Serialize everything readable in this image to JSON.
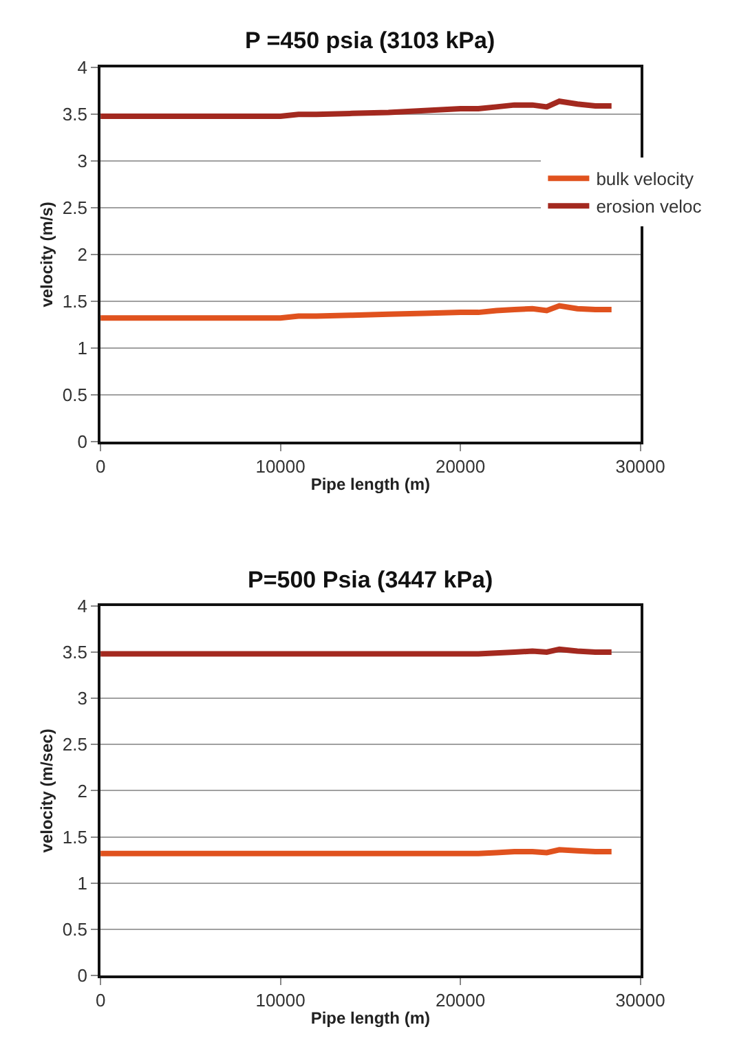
{
  "chart_data": [
    {
      "type": "line",
      "title": "P =450 psia (3103 kPa)",
      "xlabel": "Pipe length (m)",
      "ylabel": "velocity (m/s)",
      "x": [
        0,
        2000,
        4000,
        6000,
        8000,
        10000,
        11000,
        12000,
        14000,
        16000,
        18000,
        20000,
        21000,
        22000,
        23000,
        24000,
        24800,
        25500,
        26500,
        27500,
        28400
      ],
      "series": [
        {
          "name": "bulk velocity",
          "color": "#e0521e",
          "values": [
            1.32,
            1.32,
            1.32,
            1.32,
            1.32,
            1.32,
            1.34,
            1.34,
            1.35,
            1.36,
            1.37,
            1.38,
            1.38,
            1.4,
            1.41,
            1.42,
            1.4,
            1.45,
            1.42,
            1.41,
            1.41
          ]
        },
        {
          "name": "erosion veloc",
          "color": "#a3291f",
          "values": [
            3.48,
            3.48,
            3.48,
            3.48,
            3.48,
            3.48,
            3.5,
            3.5,
            3.51,
            3.52,
            3.54,
            3.56,
            3.56,
            3.58,
            3.6,
            3.6,
            3.58,
            3.64,
            3.61,
            3.59,
            3.59
          ]
        }
      ],
      "xlim": [
        0,
        30000
      ],
      "xticks": [
        0,
        10000,
        20000,
        30000
      ],
      "ylim": [
        0,
        4
      ],
      "yticks": [
        0,
        0.5,
        1,
        1.5,
        2,
        2.5,
        3,
        3.5,
        4
      ],
      "grid": "y",
      "legend": "right",
      "marker": "none",
      "line_style": "solid"
    },
    {
      "type": "line",
      "title": "P=500 Psia (3447 kPa)",
      "xlabel": "Pipe length (m)",
      "ylabel": "velocity (m/sec)",
      "x": [
        0,
        2000,
        4000,
        6000,
        8000,
        10000,
        11000,
        12000,
        14000,
        16000,
        18000,
        20000,
        21000,
        22000,
        23000,
        24000,
        24800,
        25500,
        26500,
        27500,
        28400
      ],
      "series": [
        {
          "color": "#e0521e",
          "values": [
            1.32,
            1.32,
            1.32,
            1.32,
            1.32,
            1.32,
            1.32,
            1.32,
            1.32,
            1.32,
            1.32,
            1.32,
            1.32,
            1.33,
            1.34,
            1.34,
            1.33,
            1.36,
            1.35,
            1.34,
            1.34
          ]
        },
        {
          "color": "#a3291f",
          "values": [
            3.48,
            3.48,
            3.48,
            3.48,
            3.48,
            3.48,
            3.48,
            3.48,
            3.48,
            3.48,
            3.48,
            3.48,
            3.48,
            3.49,
            3.5,
            3.51,
            3.5,
            3.53,
            3.51,
            3.5,
            3.5
          ]
        }
      ],
      "xlim": [
        0,
        30000
      ],
      "xticks": [
        0,
        10000,
        20000,
        30000
      ],
      "ylim": [
        0,
        4
      ],
      "yticks": [
        0,
        0.5,
        1,
        1.5,
        2,
        2.5,
        3,
        3.5,
        4
      ],
      "grid": "y",
      "marker": "none",
      "line_style": "solid"
    }
  ]
}
